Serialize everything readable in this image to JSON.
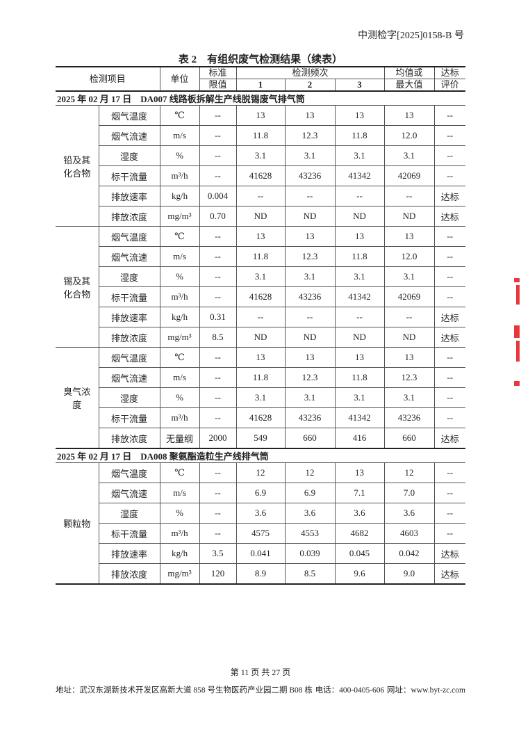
{
  "header": {
    "doc_number": "中测检字[2025]0158-B 号",
    "table_title": "表 2　有组织废气检测结果（续表）"
  },
  "columns": {
    "item": "检测项目",
    "unit": "单位",
    "limit_1": "标准",
    "limit_2": "限值",
    "freq": "检测频次",
    "f1": "1",
    "f2": "2",
    "f3": "3",
    "avg_1": "均值或",
    "avg_2": "最大值",
    "eval_1": "达标",
    "eval_2": "评价"
  },
  "sections": [
    {
      "title": "2025 年 02 月 17 日　DA007 线路板拆解生产线脱锡废气排气筒",
      "groups": [
        {
          "name": "铅及其化合物",
          "rows": [
            [
              "烟气温度",
              "℃",
              "--",
              "13",
              "13",
              "13",
              "13",
              "--"
            ],
            [
              "烟气流速",
              "m/s",
              "--",
              "11.8",
              "12.3",
              "11.8",
              "12.0",
              "--"
            ],
            [
              "湿度",
              "%",
              "--",
              "3.1",
              "3.1",
              "3.1",
              "3.1",
              "--"
            ],
            [
              "标干流量",
              "m³/h",
              "--",
              "41628",
              "43236",
              "41342",
              "42069",
              "--"
            ],
            [
              "排放速率",
              "kg/h",
              "0.004",
              "--",
              "--",
              "--",
              "--",
              "达标"
            ],
            [
              "排放浓度",
              "mg/m³",
              "0.70",
              "ND",
              "ND",
              "ND",
              "ND",
              "达标"
            ]
          ]
        },
        {
          "name": "锡及其化合物",
          "rows": [
            [
              "烟气温度",
              "℃",
              "--",
              "13",
              "13",
              "13",
              "13",
              "--"
            ],
            [
              "烟气流速",
              "m/s",
              "--",
              "11.8",
              "12.3",
              "11.8",
              "12.0",
              "--"
            ],
            [
              "湿度",
              "%",
              "--",
              "3.1",
              "3.1",
              "3.1",
              "3.1",
              "--"
            ],
            [
              "标干流量",
              "m³/h",
              "--",
              "41628",
              "43236",
              "41342",
              "42069",
              "--"
            ],
            [
              "排放速率",
              "kg/h",
              "0.31",
              "--",
              "--",
              "--",
              "--",
              "达标"
            ],
            [
              "排放浓度",
              "mg/m³",
              "8.5",
              "ND",
              "ND",
              "ND",
              "ND",
              "达标"
            ]
          ]
        },
        {
          "name": "臭气浓度",
          "rows": [
            [
              "烟气温度",
              "℃",
              "--",
              "13",
              "13",
              "13",
              "13",
              "--"
            ],
            [
              "烟气流速",
              "m/s",
              "--",
              "11.8",
              "12.3",
              "11.8",
              "12.3",
              "--"
            ],
            [
              "湿度",
              "%",
              "--",
              "3.1",
              "3.1",
              "3.1",
              "3.1",
              "--"
            ],
            [
              "标干流量",
              "m³/h",
              "--",
              "41628",
              "43236",
              "41342",
              "43236",
              "--"
            ],
            [
              "排放浓度",
              "无量纲",
              "2000",
              "549",
              "660",
              "416",
              "660",
              "达标"
            ]
          ]
        }
      ]
    },
    {
      "title": "2025 年 02 月 17 日　DA008 聚氨酯造粒生产线排气筒",
      "groups": [
        {
          "name": "颗粒物",
          "rows": [
            [
              "烟气温度",
              "℃",
              "--",
              "12",
              "12",
              "13",
              "12",
              "--"
            ],
            [
              "烟气流速",
              "m/s",
              "--",
              "6.9",
              "6.9",
              "7.1",
              "7.0",
              "--"
            ],
            [
              "湿度",
              "%",
              "--",
              "3.6",
              "3.6",
              "3.6",
              "3.6",
              "--"
            ],
            [
              "标干流量",
              "m³/h",
              "--",
              "4575",
              "4553",
              "4682",
              "4603",
              "--"
            ],
            [
              "排放速率",
              "kg/h",
              "3.5",
              "0.041",
              "0.039",
              "0.045",
              "0.042",
              "达标"
            ],
            [
              "排放浓度",
              "mg/m³",
              "120",
              "8.9",
              "8.5",
              "9.6",
              "9.0",
              "达标"
            ]
          ]
        }
      ]
    }
  ],
  "footer": {
    "page": "第 11 页 共 27 页",
    "address": "地址：武汉东湖新技术开发区高新大道 858 号生物医药产业园二期 B08 栋",
    "phone": "电话：400-0405-606",
    "website": "网址：www.byt-zc.com"
  },
  "seal": {
    "color": "#e8363a"
  }
}
